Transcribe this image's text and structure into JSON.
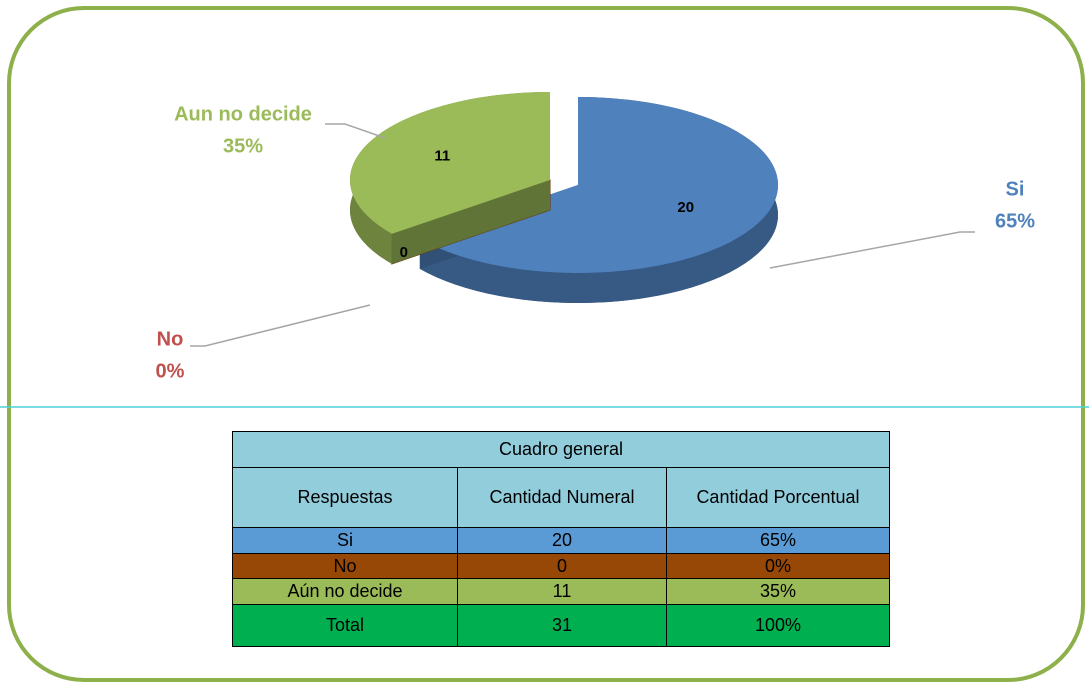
{
  "chart_data": {
    "type": "pie",
    "categories": [
      "Si",
      "No",
      "Aun no decide"
    ],
    "values": [
      20,
      0,
      11
    ],
    "percentages": [
      65,
      0,
      35
    ],
    "percentage_labels": [
      "65%",
      "0%",
      "35%"
    ],
    "colors": [
      "#4f81bd",
      "#984807",
      "#9bbb59"
    ]
  },
  "table": {
    "title": "Cuadro general",
    "header": [
      "Respuestas",
      "Cantidad Numeral",
      "Cantidad Porcentual"
    ],
    "rows": [
      [
        "Si",
        "20",
        "65%"
      ],
      [
        "No",
        "0",
        "0%"
      ],
      [
        "Aún no decide",
        "11",
        "35%"
      ],
      [
        "Total",
        "31",
        "100%"
      ]
    ]
  }
}
